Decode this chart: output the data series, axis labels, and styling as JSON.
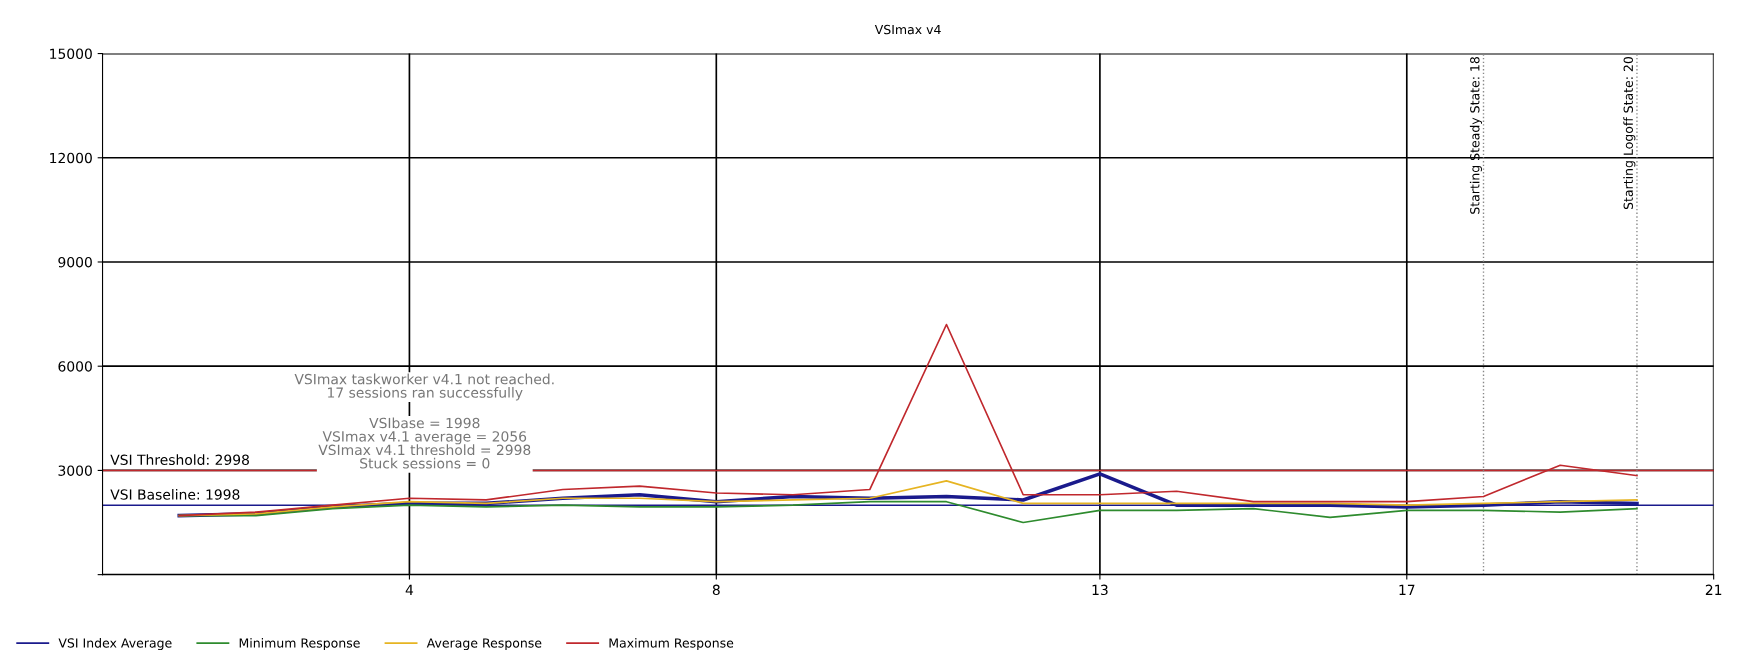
{
  "chart_data": {
    "type": "line",
    "title": "VSImax v4",
    "x": [
      1,
      2,
      3,
      4,
      5,
      6,
      7,
      8,
      9,
      10,
      11,
      12,
      13,
      14,
      15,
      16,
      17,
      18,
      19,
      20
    ],
    "series": [
      {
        "name": "VSI Index Average",
        "color": "#1a1a8c",
        "values": [
          1700,
          1750,
          1950,
          2050,
          2050,
          2200,
          2300,
          2100,
          2250,
          2200,
          2250,
          2150,
          2900,
          2000,
          2000,
          2000,
          1950,
          2000,
          2100,
          2050
        ]
      },
      {
        "name": "Minimum Response",
        "color": "#2e8b2e",
        "values": [
          1700,
          1700,
          1900,
          2000,
          1950,
          2000,
          1950,
          1950,
          2000,
          2100,
          2100,
          1500,
          1850,
          1850,
          1900,
          1650,
          1850,
          1850,
          1800,
          1900
        ]
      },
      {
        "name": "Average Response",
        "color": "#e6b422",
        "values": [
          1700,
          1750,
          1950,
          2100,
          2050,
          2200,
          2200,
          2100,
          2150,
          2200,
          2700,
          2050,
          2050,
          2050,
          2050,
          2050,
          2000,
          2050,
          2100,
          2150
        ]
      },
      {
        "name": "Maximum Response",
        "color": "#c0282d",
        "values": [
          1700,
          1800,
          2000,
          2200,
          2150,
          2450,
          2550,
          2350,
          2300,
          2450,
          7200,
          2300,
          2300,
          2400,
          2100,
          2100,
          2100,
          2250,
          3150,
          2850
        ]
      }
    ],
    "xlim": [
      0,
      21
    ],
    "xticks": [
      4,
      8,
      13,
      17,
      21
    ],
    "ylim": [
      0,
      15000
    ],
    "yticks": [
      {
        "value": 0,
        "label": null
      },
      3000,
      6000,
      9000,
      12000,
      15000
    ],
    "grid": true,
    "legend": "bottom left",
    "marker": "none",
    "line_style": "solid",
    "ref_lines": [
      {
        "axis": "y",
        "value": 2998,
        "label": "VSI Threshold: 2998",
        "color": "#c0282d",
        "line_style": "solid"
      },
      {
        "axis": "y",
        "value": 1998,
        "label": "VSI Baseline: 1998",
        "color": "#1a1a8c",
        "line_style": "solid"
      },
      {
        "axis": "x",
        "value": 18,
        "label": "Starting Steady State: 18",
        "color": "#888888",
        "line_style": "dotted"
      },
      {
        "axis": "x",
        "value": 20,
        "label": "Starting Logoff State: 20",
        "color": "#888888",
        "line_style": "dotted"
      }
    ],
    "annotations": [
      "VSImax taskworker v4.1 not reached.\n17 sessions ran successfully",
      "VSIbase = 1998\nVSImax v4.1 average = 2056\nVSImax v4.1 threshold = 2998\nStuck sessions = 0"
    ]
  }
}
